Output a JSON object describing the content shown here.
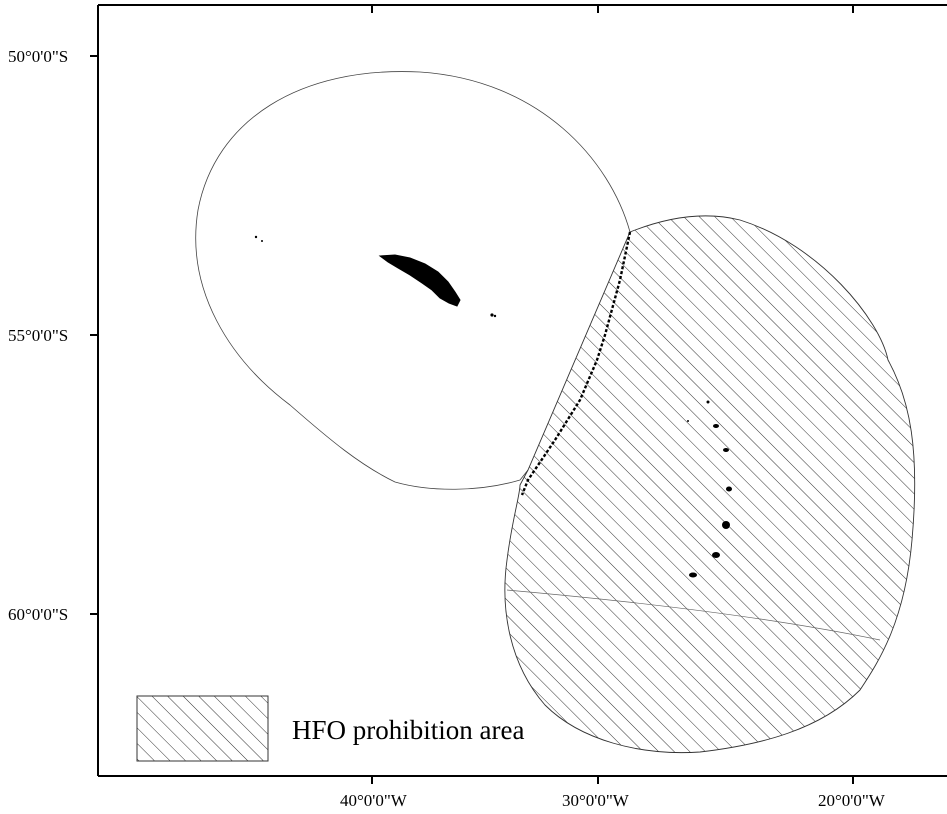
{
  "map": {
    "axes": {
      "x_tick_labels": [
        "40°0'0\"W",
        "30°0'0\"W",
        "20°0'0\"W"
      ],
      "y_tick_labels": [
        "50°0'0\"S",
        "55°0'0\"S",
        "60°0'0\"S"
      ]
    },
    "legend": {
      "label": "HFO prohibition area"
    },
    "colors": {
      "frame": "#000000",
      "boundary": "#444444",
      "hatch": "#333333",
      "land": "#000000",
      "background": "#ffffff"
    },
    "patterns": {
      "prohibition_area": "diagonal-hatch"
    }
  }
}
